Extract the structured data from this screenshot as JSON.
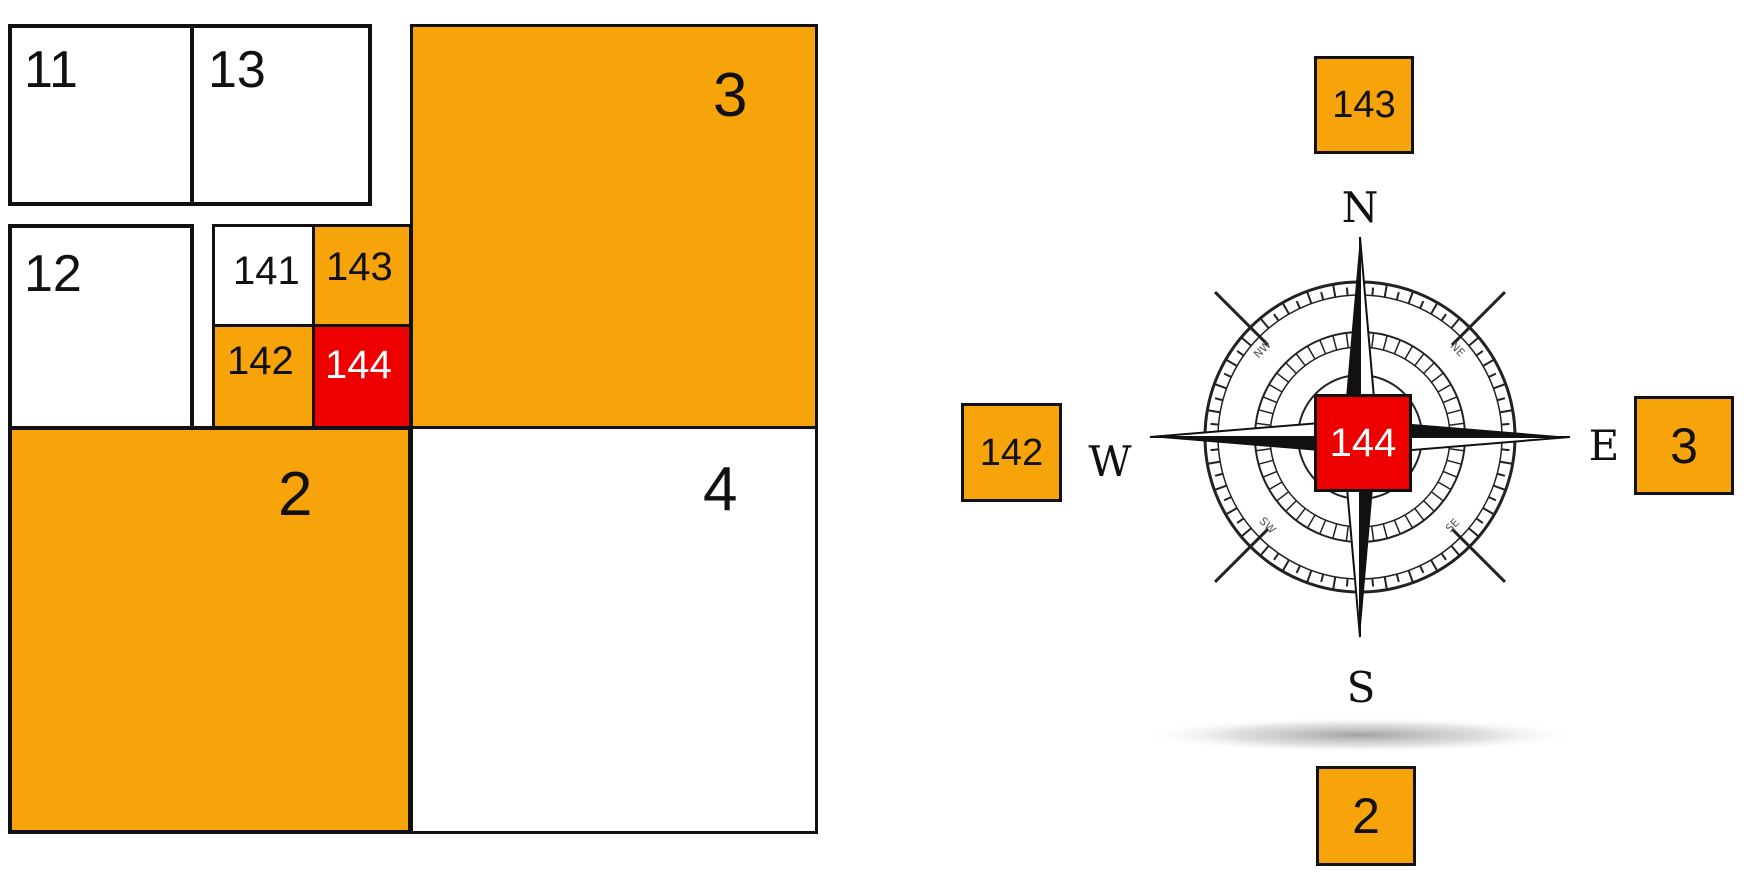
{
  "colors": {
    "orange": "#F7A30A",
    "red": "#EE0000",
    "white": "#FFFFFF",
    "outline": "#111111"
  },
  "grid": {
    "cells": {
      "c11": {
        "label": "11",
        "fill": "white"
      },
      "c13": {
        "label": "13",
        "fill": "white"
      },
      "c3": {
        "label": "3",
        "fill": "orange"
      },
      "c12": {
        "label": "12",
        "fill": "white"
      },
      "c141": {
        "label": "141",
        "fill": "white"
      },
      "c143": {
        "label": "143",
        "fill": "orange"
      },
      "c142": {
        "label": "142",
        "fill": "orange"
      },
      "c144": {
        "label": "144",
        "fill": "red"
      },
      "c2": {
        "label": "2",
        "fill": "orange"
      },
      "c4": {
        "label": "4",
        "fill": "white"
      }
    }
  },
  "compass": {
    "center": {
      "label": "144",
      "fill": "red"
    },
    "north": {
      "label": "143",
      "fill": "orange"
    },
    "west": {
      "label": "142",
      "fill": "orange"
    },
    "east": {
      "label": "3",
      "fill": "orange"
    },
    "south": {
      "label": "2",
      "fill": "orange"
    },
    "cardinals": {
      "n": "N",
      "s": "S",
      "e": "E",
      "w": "W"
    },
    "intercardinals": {
      "nw": "NW",
      "ne": "NE",
      "sw": "SW",
      "se": "SE"
    },
    "icon": "compass-rose-icon"
  }
}
